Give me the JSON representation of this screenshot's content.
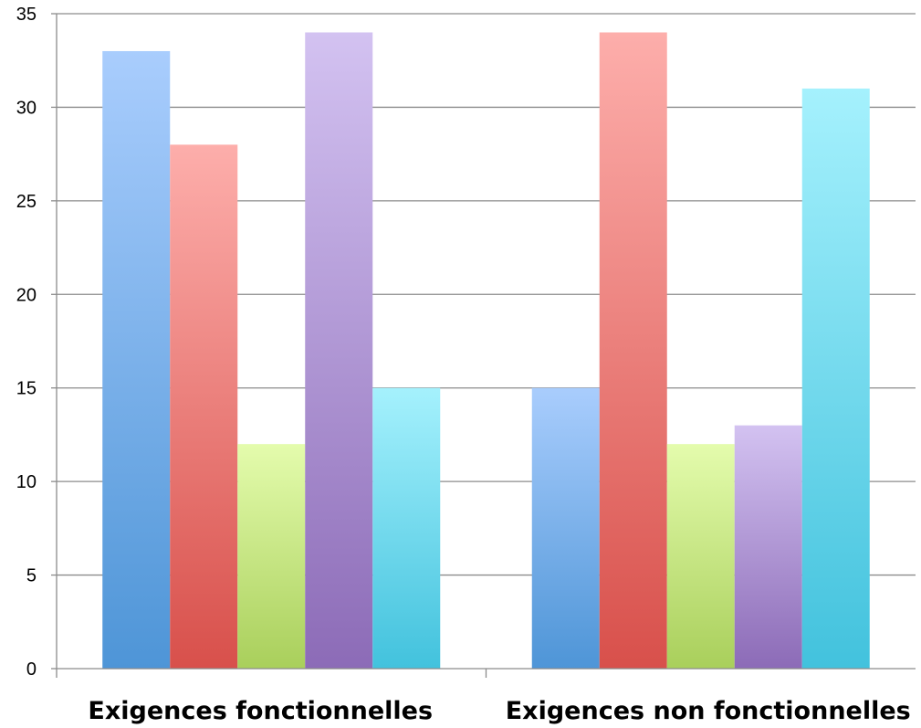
{
  "chart_data": {
    "type": "bar",
    "categories": [
      "Exigences fonctionnelles",
      "Exigences non fonctionnelles"
    ],
    "series": [
      {
        "values": [
          33,
          15
        ],
        "color_top": "#a9cdfd",
        "color_bottom": "#4e95d7"
      },
      {
        "values": [
          28,
          34
        ],
        "color_top": "#fdaeab",
        "color_bottom": "#d8504b"
      },
      {
        "values": [
          12,
          12
        ],
        "color_top": "#e4fcad",
        "color_bottom": "#a9cf5b"
      },
      {
        "values": [
          34,
          13
        ],
        "color_top": "#d3c2f1",
        "color_bottom": "#8c6bb7"
      },
      {
        "values": [
          15,
          31
        ],
        "color_top": "#a5f1fd",
        "color_bottom": "#42c2dd"
      }
    ],
    "yticks": [
      0,
      5,
      10,
      15,
      20,
      25,
      30,
      35
    ],
    "ylim": [
      0,
      35
    ],
    "grid": true,
    "legend": "none",
    "title": "",
    "xlabel": "",
    "ylabel": ""
  }
}
